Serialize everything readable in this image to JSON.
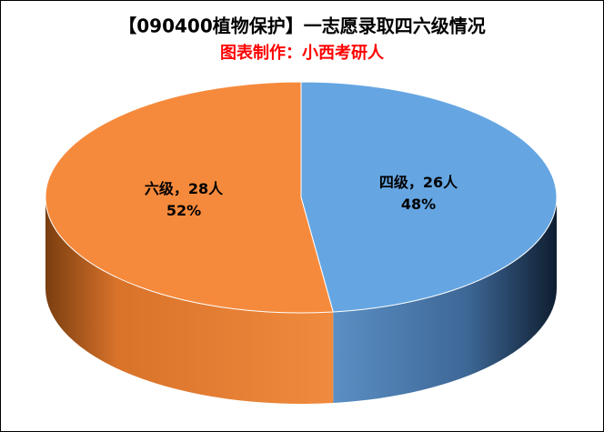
{
  "chart_data": {
    "type": "pie",
    "title": "【090400植物保护】一志愿录取四六级情况",
    "subtitle": "图表制作：小西考研人",
    "categories": [
      "四级，26人",
      "六级，28人"
    ],
    "values": [
      48,
      52
    ],
    "value_labels": [
      "48%",
      "52%"
    ],
    "colors": [
      "#65a6e2",
      "#f68a3c"
    ]
  }
}
